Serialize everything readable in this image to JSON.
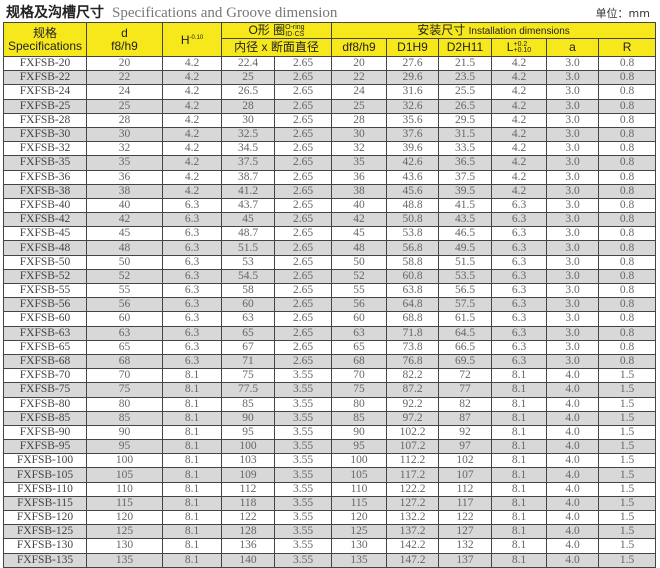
{
  "title": {
    "cn": "规格及沟槽尺寸",
    "en": "Specifications and Groove dimension"
  },
  "unit": "单位：mm",
  "header": {
    "spec_cn": "规格",
    "spec_en": "Specifications",
    "d": "d",
    "d_tol": "f8/h9",
    "H": "H",
    "H_tol": "-0.10",
    "oring_cn": "O形 圈",
    "oring_en": "O-ring",
    "oring_sub": "ID·CS",
    "oring_dims": "内径 x 断面直径",
    "install_cn": "安装尺寸",
    "install_en": "Installation dimensions",
    "df": "df8/h9",
    "D1": "D1H9",
    "D2": "D2H11",
    "L": "L",
    "L_tol_up": "+0.2",
    "L_tol_down": "+0.10",
    "a": "a",
    "R": "R"
  },
  "rows": [
    [
      "FXFSB-20",
      "20",
      "4.2",
      "22.4",
      "2.65",
      "20",
      "27.6",
      "21.5",
      "4.2",
      "3.0",
      "0.8"
    ],
    [
      "FXFSB-22",
      "22",
      "4.2",
      "25",
      "2.65",
      "22",
      "29.6",
      "23.5",
      "4.2",
      "3.0",
      "0.8"
    ],
    [
      "FXFSB-24",
      "24",
      "4.2",
      "26.5",
      "2.65",
      "24",
      "31.6",
      "25.5",
      "4.2",
      "3.0",
      "0.8"
    ],
    [
      "FXFSB-25",
      "25",
      "4.2",
      "28",
      "2.65",
      "25",
      "32.6",
      "26.5",
      "4.2",
      "3.0",
      "0.8"
    ],
    [
      "FXFSB-28",
      "28",
      "4.2",
      "30",
      "2.65",
      "28",
      "35.6",
      "29.5",
      "4.2",
      "3.0",
      "0.8"
    ],
    [
      "FXFSB-30",
      "30",
      "4.2",
      "32.5",
      "2.65",
      "30",
      "37.6",
      "31.5",
      "4.2",
      "3.0",
      "0.8"
    ],
    [
      "FXFSB-32",
      "32",
      "4.2",
      "34.5",
      "2.65",
      "32",
      "39.6",
      "33.5",
      "4.2",
      "3.0",
      "0.8"
    ],
    [
      "FXFSB-35",
      "35",
      "4.2",
      "37.5",
      "2.65",
      "35",
      "42.6",
      "36.5",
      "4.2",
      "3.0",
      "0.8"
    ],
    [
      "FXFSB-36",
      "36",
      "4.2",
      "38.7",
      "2.65",
      "36",
      "43.6",
      "37.5",
      "4.2",
      "3.0",
      "0.8"
    ],
    [
      "FXFSB-38",
      "38",
      "4.2",
      "41.2",
      "2.65",
      "38",
      "45.6",
      "39.5",
      "4.2",
      "3.0",
      "0.8"
    ],
    [
      "FXFSB-40",
      "40",
      "6.3",
      "43.7",
      "2.65",
      "40",
      "48.8",
      "41.5",
      "6.3",
      "3.0",
      "0.8"
    ],
    [
      "FXFSB-42",
      "42",
      "6.3",
      "45",
      "2.65",
      "42",
      "50.8",
      "43.5",
      "6.3",
      "3.0",
      "0.8"
    ],
    [
      "FXFSB-45",
      "45",
      "6.3",
      "48.7",
      "2.65",
      "45",
      "53.8",
      "46.5",
      "6.3",
      "3.0",
      "0.8"
    ],
    [
      "FXFSB-48",
      "48",
      "6.3",
      "51.5",
      "2.65",
      "48",
      "56.8",
      "49.5",
      "6.3",
      "3.0",
      "0.8"
    ],
    [
      "FXFSB-50",
      "50",
      "6.3",
      "53",
      "2.65",
      "50",
      "58.8",
      "51.5",
      "6.3",
      "3.0",
      "0.8"
    ],
    [
      "FXFSB-52",
      "52",
      "6.3",
      "54.5",
      "2.65",
      "52",
      "60.8",
      "53.5",
      "6.3",
      "3.0",
      "0.8"
    ],
    [
      "FXFSB-55",
      "55",
      "6.3",
      "58",
      "2.65",
      "55",
      "63.8",
      "56.5",
      "6.3",
      "3.0",
      "0.8"
    ],
    [
      "FXFSB-56",
      "56",
      "6.3",
      "60",
      "2.65",
      "56",
      "64.8",
      "57.5",
      "6.3",
      "3.0",
      "0.8"
    ],
    [
      "FXFSB-60",
      "60",
      "6.3",
      "63",
      "2.65",
      "60",
      "68.8",
      "61.5",
      "6.3",
      "3.0",
      "0.8"
    ],
    [
      "FXFSB-63",
      "63",
      "6.3",
      "65",
      "2.65",
      "63",
      "71.8",
      "64.5",
      "6.3",
      "3.0",
      "0.8"
    ],
    [
      "FXFSB-65",
      "65",
      "6.3",
      "67",
      "2.65",
      "65",
      "73.8",
      "66.5",
      "6.3",
      "3.0",
      "0.8"
    ],
    [
      "FXFSB-68",
      "68",
      "6.3",
      "71",
      "2.65",
      "68",
      "76.8",
      "69.5",
      "6.3",
      "3.0",
      "0.8"
    ],
    [
      "FXFSB-70",
      "70",
      "8.1",
      "75",
      "3.55",
      "70",
      "82.2",
      "72",
      "8.1",
      "4.0",
      "1.5"
    ],
    [
      "FXFSB-75",
      "75",
      "8.1",
      "77.5",
      "3.55",
      "75",
      "87.2",
      "77",
      "8.1",
      "4.0",
      "1.5"
    ],
    [
      "FXFSB-80",
      "80",
      "8.1",
      "85",
      "3.55",
      "80",
      "92.2",
      "82",
      "8.1",
      "4.0",
      "1.5"
    ],
    [
      "FXFSB-85",
      "85",
      "8.1",
      "90",
      "3.55",
      "85",
      "97.2",
      "87",
      "8.1",
      "4.0",
      "1.5"
    ],
    [
      "FXFSB-90",
      "90",
      "8.1",
      "95",
      "3.55",
      "90",
      "102.2",
      "92",
      "8.1",
      "4.0",
      "1.5"
    ],
    [
      "FXFSB-95",
      "95",
      "8.1",
      "100",
      "3.55",
      "95",
      "107.2",
      "97",
      "8.1",
      "4.0",
      "1.5"
    ],
    [
      "FXFSB-100",
      "100",
      "8.1",
      "103",
      "3.55",
      "100",
      "112.2",
      "102",
      "8.1",
      "4.0",
      "1.5"
    ],
    [
      "FXFSB-105",
      "105",
      "8.1",
      "109",
      "3.55",
      "105",
      "117.2",
      "107",
      "8.1",
      "4.0",
      "1.5"
    ],
    [
      "FXFSB-110",
      "110",
      "8.1",
      "112",
      "3.55",
      "110",
      "122.2",
      "112",
      "8.1",
      "4.0",
      "1.5"
    ],
    [
      "FXFSB-115",
      "115",
      "8.1",
      "118",
      "3.55",
      "115",
      "127.2",
      "117",
      "8.1",
      "4.0",
      "1.5"
    ],
    [
      "FXFSB-120",
      "120",
      "8.1",
      "122",
      "3.55",
      "120",
      "132.2",
      "122",
      "8.1",
      "4.0",
      "1.5"
    ],
    [
      "FXFSB-125",
      "125",
      "8.1",
      "128",
      "3.55",
      "125",
      "137.2",
      "127",
      "8.1",
      "4.0",
      "1.5"
    ],
    [
      "FXFSB-130",
      "130",
      "8.1",
      "136",
      "3.55",
      "130",
      "142.2",
      "132",
      "8.1",
      "4.0",
      "1.5"
    ],
    [
      "FXFSB-135",
      "135",
      "8.1",
      "140",
      "3.55",
      "135",
      "147.2",
      "137",
      "8.1",
      "4.0",
      "1.5"
    ]
  ],
  "colors": {
    "header_bg": "#f7e81c",
    "alt_row_bg": "#d8d8d8"
  }
}
